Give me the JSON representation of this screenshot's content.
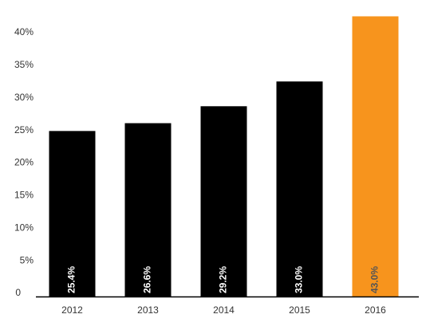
{
  "chart_data": {
    "type": "bar",
    "categories": [
      "2012",
      "2013",
      "2014",
      "2015",
      "2016"
    ],
    "values": [
      25.4,
      26.6,
      29.2,
      33.0,
      43.0
    ],
    "value_labels": [
      "25.4%",
      "26.6%",
      "29.2%",
      "33.0%",
      "43.0%"
    ],
    "colors": [
      "#000000",
      "#000000",
      "#000000",
      "#000000",
      "#f7941d"
    ],
    "ylim": [
      0,
      44
    ],
    "yticks": [
      0,
      {
        "value": 5,
        "label": "5%"
      },
      {
        "value": 10,
        "label": "10%"
      },
      {
        "value": 15,
        "label": "15%"
      },
      {
        "value": 20,
        "label": "20%"
      },
      {
        "value": 25,
        "label": "25%"
      },
      {
        "value": 30,
        "label": "30%"
      },
      {
        "value": 35,
        "label": "35%"
      },
      {
        "value": 40,
        "label": "40%"
      }
    ],
    "grid": false
  }
}
